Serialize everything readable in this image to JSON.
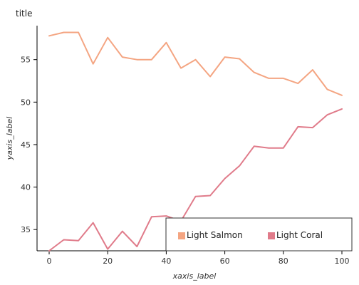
{
  "chart_data": {
    "type": "line",
    "title": "title",
    "xlabel": "xaxis_label",
    "ylabel": "yaxis_label",
    "xlim": [
      0,
      100
    ],
    "ylim": [
      32.5,
      59
    ],
    "xticks": [
      0,
      20,
      40,
      60,
      80,
      100
    ],
    "yticks": [
      35,
      40,
      45,
      50,
      55
    ],
    "grid": false,
    "legend": {
      "placement": "bottom-right"
    },
    "series": [
      {
        "name": "Light Salmon",
        "color": "#F4A582",
        "x": [
          0,
          5,
          10,
          15,
          20,
          25,
          30,
          35,
          40,
          45,
          50,
          55,
          60,
          65,
          70,
          75,
          80,
          85,
          90,
          95,
          100
        ],
        "y": [
          57.8,
          58.2,
          58.2,
          54.5,
          57.6,
          55.3,
          55.0,
          55.0,
          57.0,
          54.0,
          55.0,
          53.0,
          55.3,
          55.1,
          53.5,
          52.8,
          52.8,
          52.2,
          53.8,
          51.5,
          50.8
        ]
      },
      {
        "name": "Light Coral",
        "color": "#E07B8A",
        "x": [
          0,
          5,
          10,
          15,
          20,
          25,
          30,
          35,
          40,
          45,
          50,
          55,
          60,
          65,
          70,
          75,
          80,
          85,
          90,
          95,
          100
        ],
        "y": [
          32.5,
          33.8,
          33.7,
          35.8,
          32.7,
          34.8,
          33.0,
          36.5,
          36.6,
          36.0,
          38.9,
          39.0,
          41.0,
          42.5,
          44.8,
          44.6,
          44.6,
          47.1,
          47.0,
          48.5,
          49.2
        ]
      }
    ]
  }
}
